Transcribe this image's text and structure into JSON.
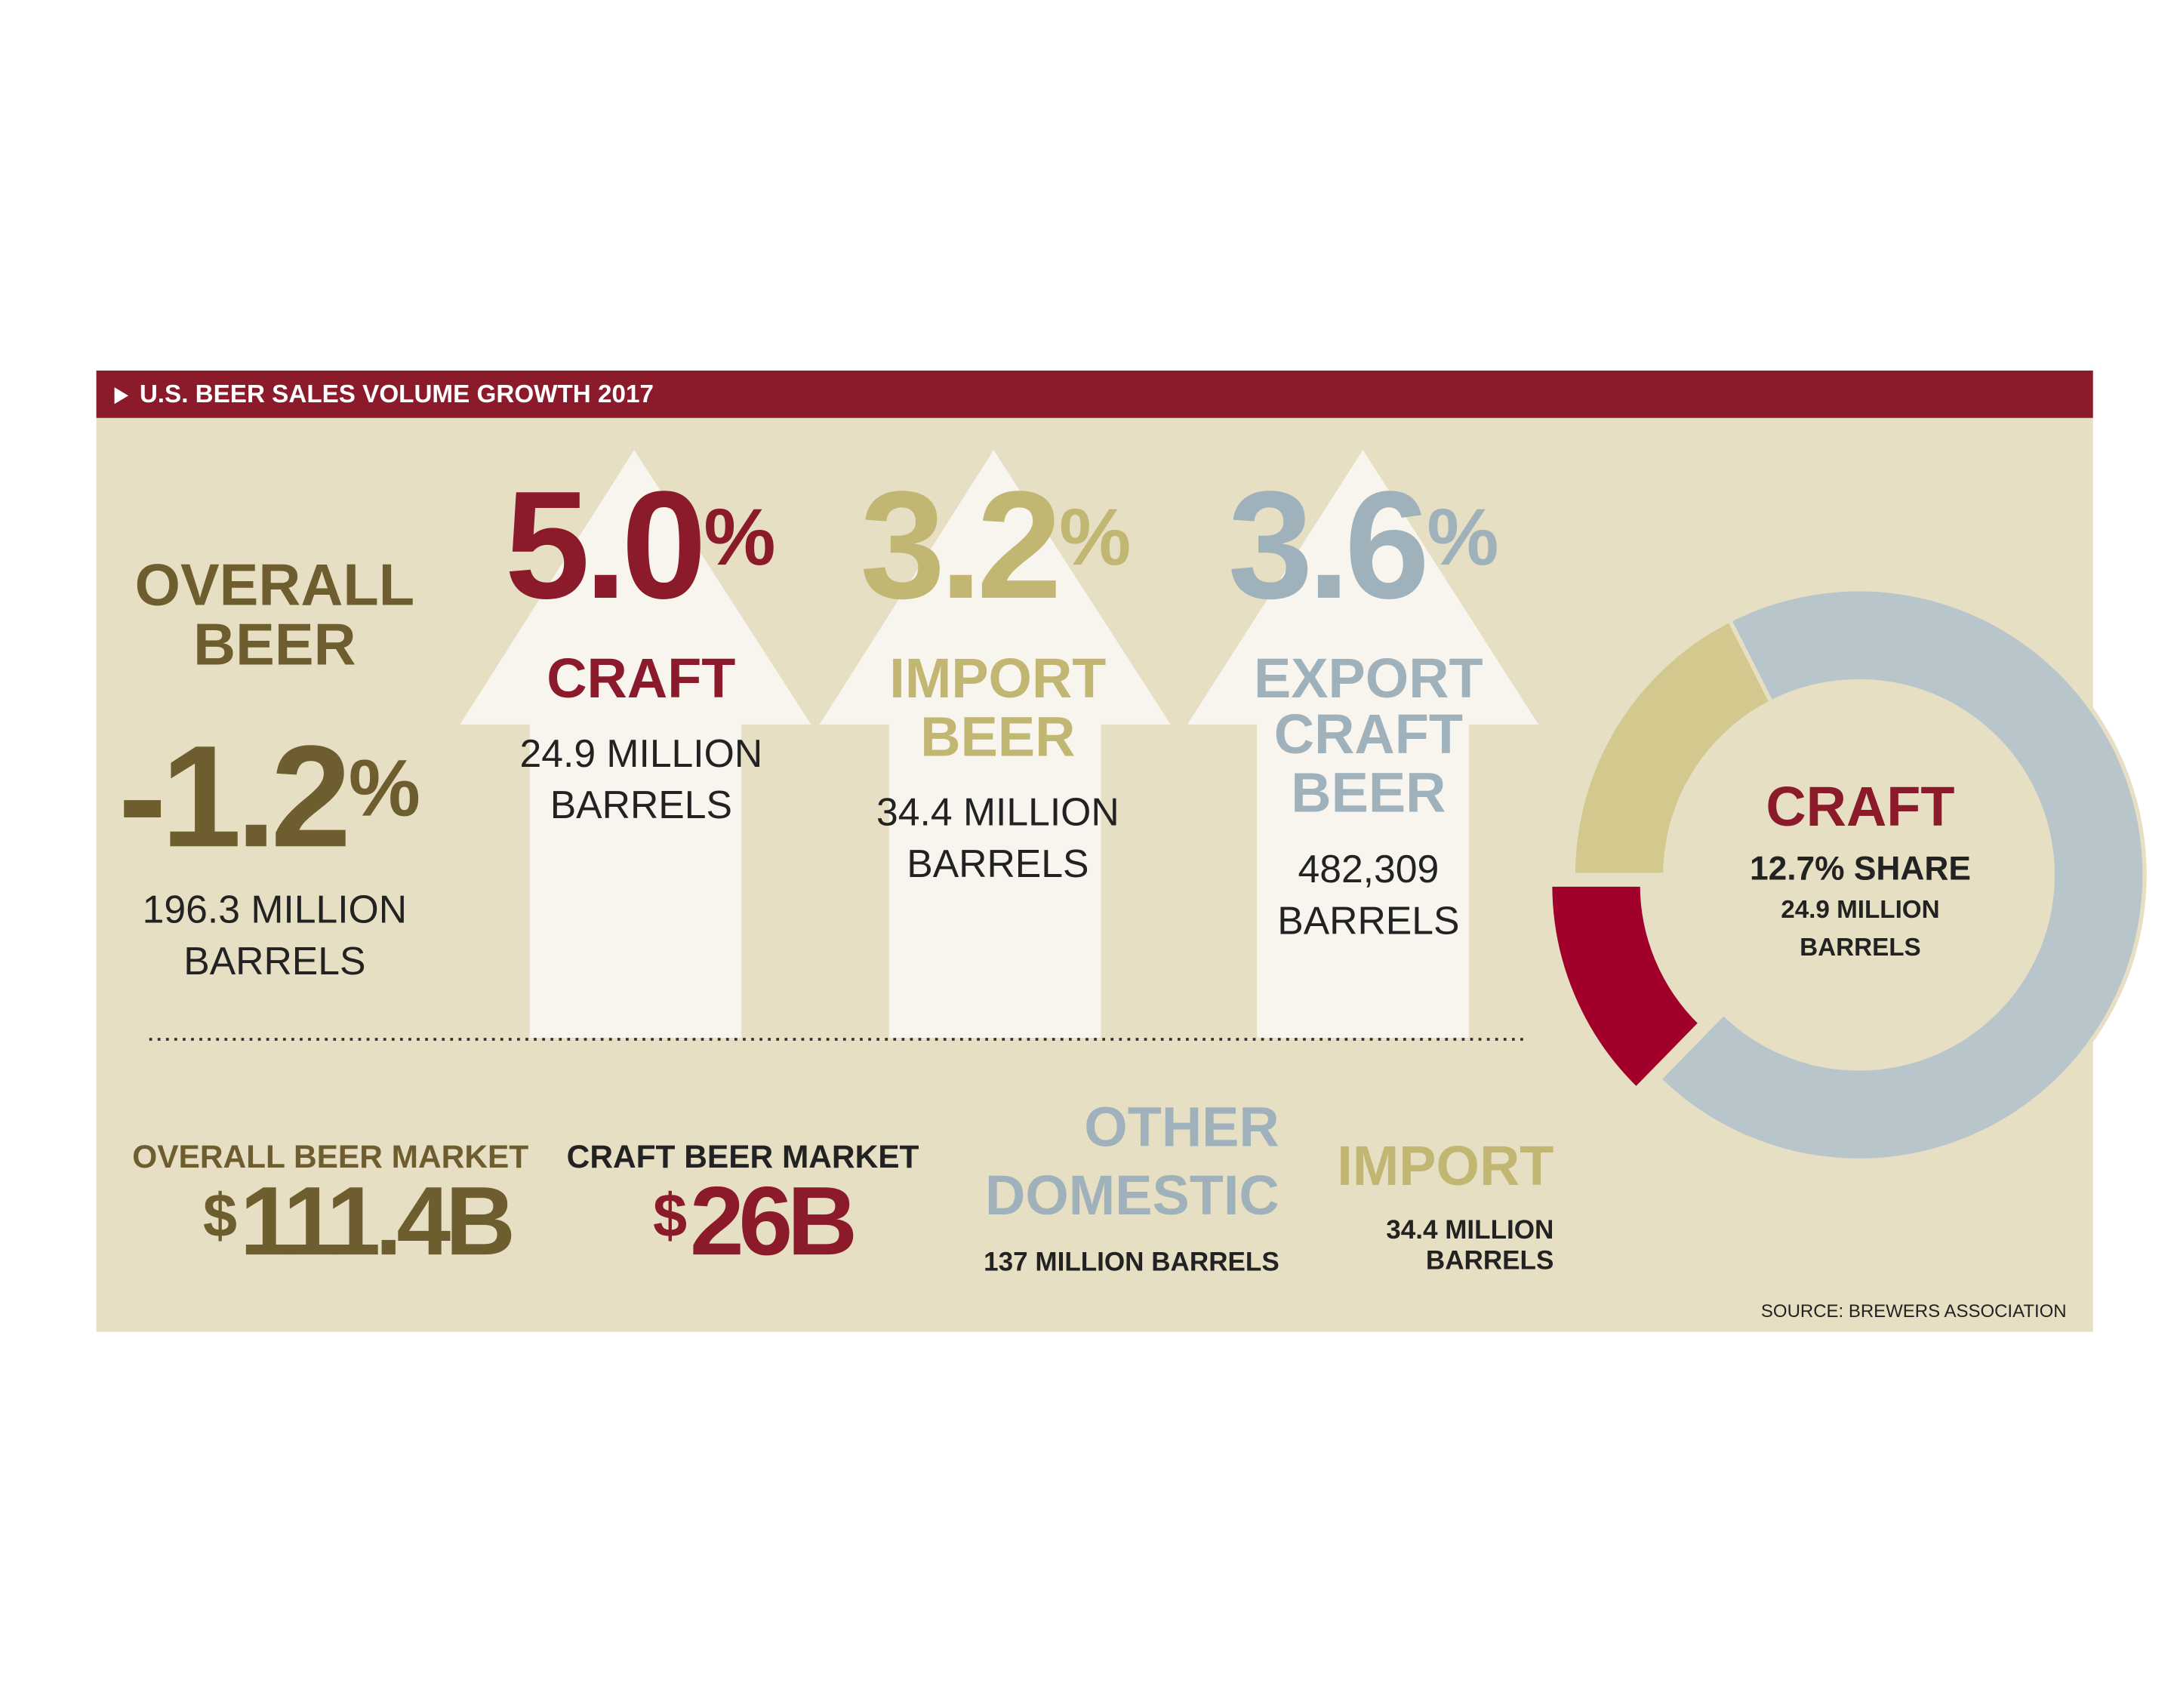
{
  "header": {
    "title": "U.S. BEER SALES VOLUME GROWTH 2017"
  },
  "overall": {
    "label": [
      "OVERALL",
      "BEER"
    ],
    "value": "-1.2",
    "unit": "%",
    "volume": [
      "196.3 MILLION",
      "BARRELS"
    ]
  },
  "arrows": [
    {
      "value": "5.0",
      "unit": "%",
      "label": [
        "CRAFT"
      ],
      "volume": [
        "24.9 MILLION",
        "BARRELS"
      ]
    },
    {
      "value": "3.2",
      "unit": "%",
      "label": [
        "IMPORT",
        "BEER"
      ],
      "volume": [
        "34.4 MILLION",
        "BARRELS"
      ]
    },
    {
      "value": "3.6",
      "unit": "%",
      "label": [
        "EXPORT",
        "CRAFT",
        "BEER"
      ],
      "volume": [
        "482,309",
        "BARRELS"
      ]
    }
  ],
  "markets": [
    {
      "label": "OVERALL BEER MARKET",
      "currency": "$",
      "value": "111.4B"
    },
    {
      "label": "CRAFT BEER MARKET",
      "currency": "$",
      "value": "26B"
    }
  ],
  "donut": {
    "segments": [
      {
        "name": "IMPORT",
        "value": 34.4,
        "color": "#d3c98e",
        "detail": [
          "34.4 MILLION",
          "BARRELS"
        ]
      },
      {
        "name": "OTHER DOMESTIC",
        "label": [
          "OTHER",
          "DOMESTIC"
        ],
        "value": 137,
        "color": "#b8c6cc",
        "detail": [
          "137 MILLION BARRELS"
        ]
      },
      {
        "name": "CRAFT",
        "value": 24.9,
        "color": "#a0002a",
        "share": "12.7% SHARE",
        "detail": [
          "24.9 MILLION",
          "BARRELS"
        ]
      }
    ]
  },
  "source": "SOURCE: BREWERS ASSOCIATION"
}
